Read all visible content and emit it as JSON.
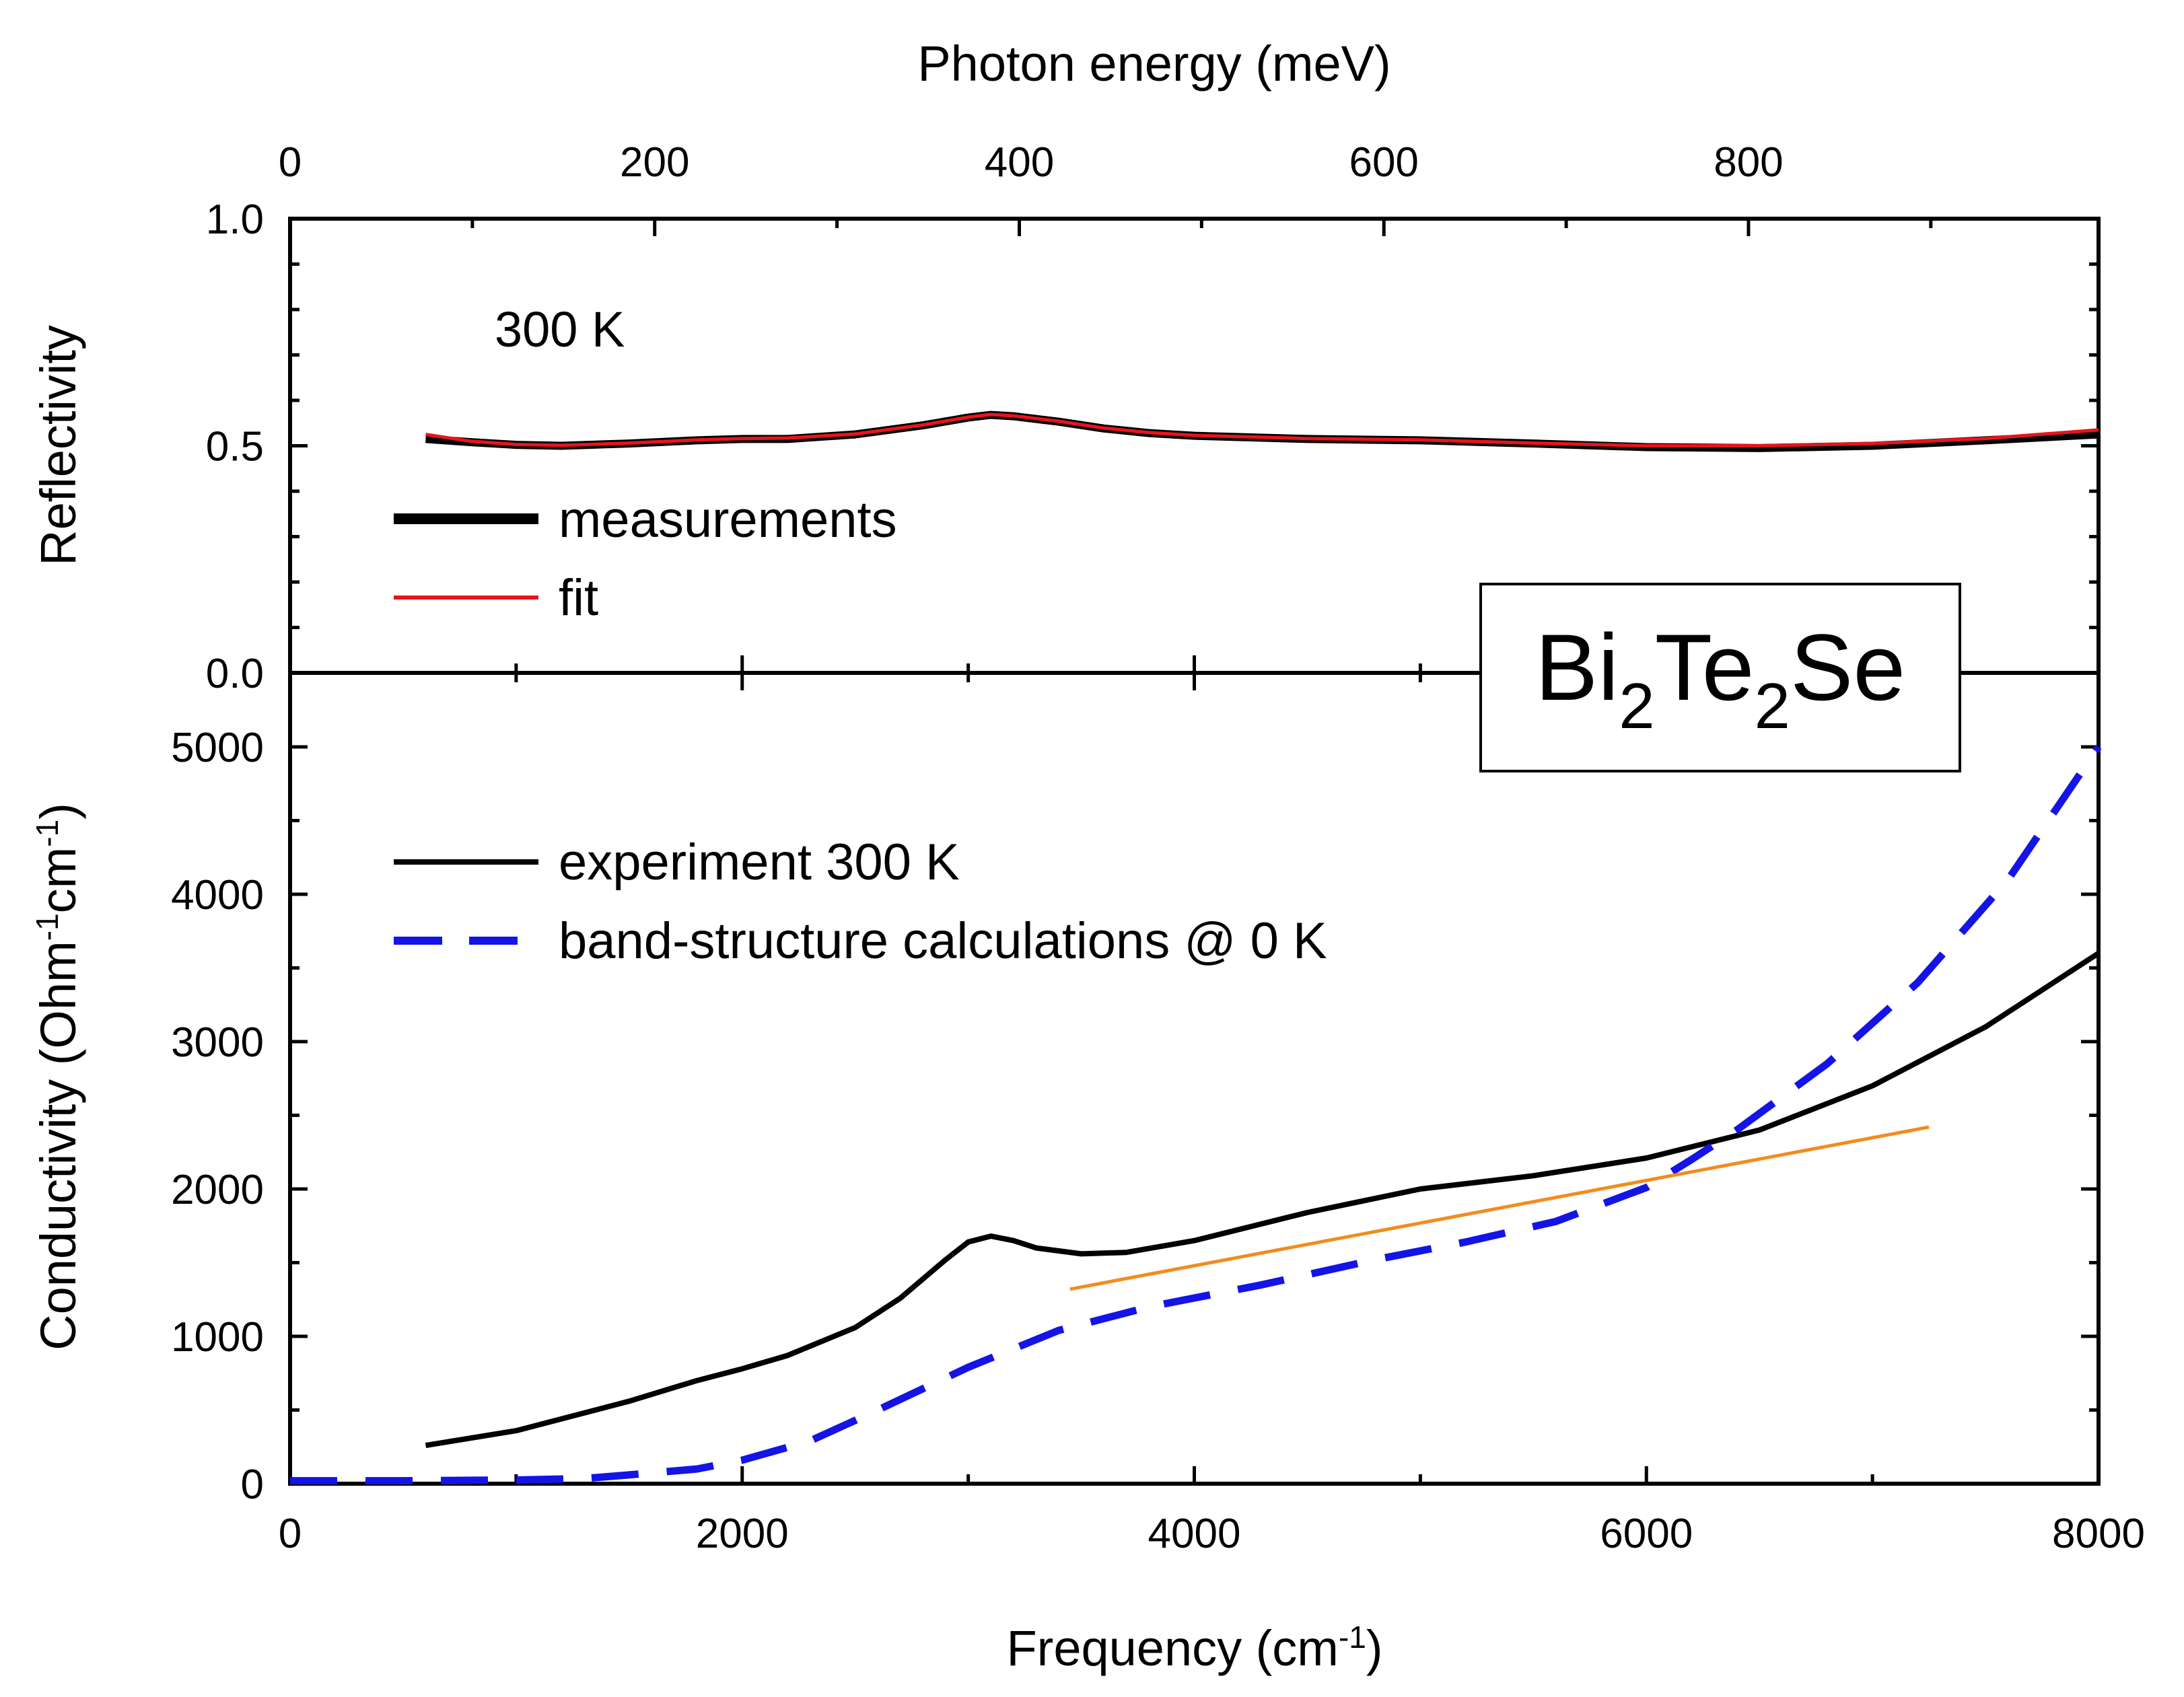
{
  "chart_data": [
    {
      "type": "line",
      "panel": "top",
      "title": "",
      "top_axis_label": "Photon energy (meV)",
      "top_axis_ticks": [
        "0",
        "200",
        "400",
        "600",
        "800"
      ],
      "top_axis_range": [
        0,
        992
      ],
      "ylabel": "Reflectivity",
      "ylim": [
        0.0,
        1.0
      ],
      "yticks": [
        "0.0",
        "0.5",
        "1.0"
      ],
      "xlim": [
        0,
        8000
      ],
      "annotation": "300 K",
      "legend": [
        {
          "name": "measurements",
          "color": "#000000"
        },
        {
          "name": "fit",
          "color": "#e8141b"
        }
      ],
      "series": [
        {
          "name": "measurements",
          "color": "#000000",
          "x": [
            600,
            800,
            1000,
            1200,
            1500,
            1800,
            2000,
            2200,
            2500,
            2800,
            3000,
            3100,
            3200,
            3400,
            3600,
            3800,
            4000,
            4500,
            5000,
            5500,
            6000,
            6500,
            7000,
            7500,
            8000
          ],
          "y": [
            0.515,
            0.508,
            0.502,
            0.5,
            0.505,
            0.512,
            0.515,
            0.515,
            0.525,
            0.545,
            0.562,
            0.568,
            0.565,
            0.553,
            0.538,
            0.528,
            0.522,
            0.515,
            0.512,
            0.505,
            0.497,
            0.495,
            0.5,
            0.512,
            0.525
          ]
        },
        {
          "name": "fit",
          "color": "#e8141b",
          "x": [
            600,
            800,
            1000,
            1200,
            1500,
            1800,
            2000,
            2200,
            2500,
            2800,
            3000,
            3100,
            3200,
            3400,
            3600,
            3800,
            4000,
            4500,
            5000,
            5500,
            6000,
            6500,
            7000,
            7500,
            8000
          ],
          "y": [
            0.525,
            0.51,
            0.503,
            0.501,
            0.506,
            0.513,
            0.516,
            0.517,
            0.526,
            0.546,
            0.563,
            0.569,
            0.566,
            0.554,
            0.539,
            0.529,
            0.523,
            0.516,
            0.513,
            0.506,
            0.5,
            0.5,
            0.505,
            0.516,
            0.535
          ]
        }
      ]
    },
    {
      "type": "line",
      "panel": "bottom",
      "sample_label": {
        "parts": [
          "Bi",
          "2",
          "Te",
          "2",
          "Se"
        ]
      },
      "xlabel": "Frequency (cm",
      "xlabel_sup": "-1",
      "xlabel_end": ")",
      "ylabel": "Conductivity (Ohm",
      "ylabel_sup1": "-1",
      "ylabel_mid": "cm",
      "ylabel_sup2": "-1",
      "ylabel_end": ")",
      "xlim": [
        0,
        8000
      ],
      "xticks": [
        "0",
        "2000",
        "4000",
        "6000",
        "8000"
      ],
      "ylim": [
        0,
        5000
      ],
      "yticks": [
        "0",
        "1000",
        "2000",
        "3000",
        "4000",
        "5000"
      ],
      "legend": [
        {
          "name": "experiment 300 K",
          "color": "#000000",
          "style": "solid"
        },
        {
          "name": "band-structure calculations @ 0 K",
          "color": "#1414e6",
          "style": "dashed"
        }
      ],
      "series": [
        {
          "name": "experiment 300 K",
          "color": "#000000",
          "style": "solid",
          "x": [
            600,
            1000,
            1500,
            1800,
            2000,
            2200,
            2500,
            2700,
            2900,
            3000,
            3100,
            3200,
            3300,
            3500,
            3700,
            4000,
            4500,
            5000,
            5500,
            6000,
            6500,
            7000,
            7500,
            8000
          ],
          "y": [
            260,
            360,
            560,
            700,
            780,
            870,
            1060,
            1260,
            1520,
            1640,
            1680,
            1650,
            1600,
            1560,
            1570,
            1650,
            1840,
            2000,
            2090,
            2210,
            2400,
            2700,
            3100,
            3600
          ]
        },
        {
          "name": "band-structure calculations @ 0 K",
          "color": "#1414e6",
          "style": "dashed",
          "x": [
            0,
            500,
            1000,
            1300,
            1500,
            1800,
            2000,
            2300,
            2600,
            3000,
            3400,
            3800,
            4300,
            4800,
            5200,
            5600,
            6000,
            6200,
            6400,
            6800,
            7200,
            7600,
            8000
          ],
          "y": [
            20,
            20,
            25,
            35,
            60,
            100,
            160,
            290,
            500,
            790,
            1040,
            1200,
            1350,
            1520,
            1640,
            1780,
            2010,
            2200,
            2400,
            2850,
            3400,
            4100,
            5000
          ]
        },
        {
          "name": "linear guide",
          "color": "#f28c1e",
          "style": "solid",
          "x": [
            3450,
            7250
          ],
          "y": [
            1320,
            2420
          ]
        }
      ]
    }
  ]
}
